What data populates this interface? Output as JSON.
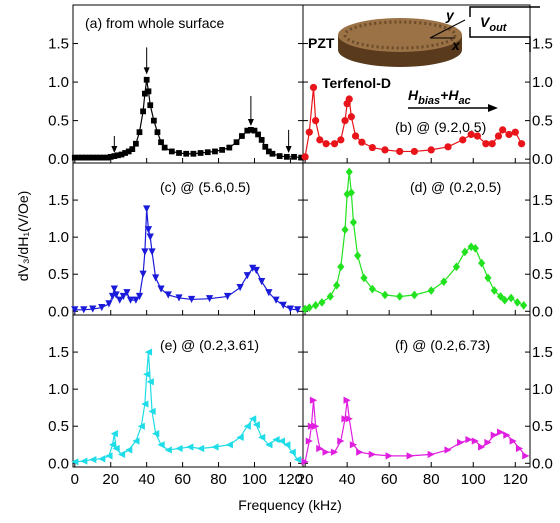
{
  "xlabel": "Frequency (kHz)",
  "ylabel": "dV₃/dH₁(V/Oe)",
  "inset": {
    "pzt": "PZT",
    "terfenol": "Terfenol-D",
    "axis_x": "x",
    "axis_y": "y",
    "vout": [
      "V",
      "out"
    ],
    "field": [
      "H",
      "bias",
      "+H",
      "ac"
    ]
  },
  "chart_data": [
    {
      "type": "line",
      "label": "(a) from whole surface",
      "color": "#000000",
      "marker": "square",
      "xlim": [
        -1,
        127
      ],
      "ylim": [
        -0.05,
        2.0
      ],
      "xticks": [
        0,
        20,
        40,
        60,
        80,
        100,
        120
      ],
      "yticks": [
        {
          "value": 0,
          "label": "0.0"
        },
        0.5,
        {
          "value": 1,
          "label": "1.0"
        },
        1.5
      ],
      "x": [
        0,
        2,
        4,
        6,
        8,
        10,
        12,
        14,
        16,
        18,
        20,
        22,
        24,
        26,
        28,
        30,
        32,
        34,
        36,
        38,
        39,
        40,
        41,
        42,
        44,
        46,
        48,
        50,
        54,
        58,
        62,
        66,
        70,
        74,
        78,
        82,
        86,
        90,
        93,
        96,
        98,
        100,
        102,
        104,
        106,
        108,
        110,
        114,
        118,
        122,
        126
      ],
      "values": [
        0.02,
        0.02,
        0.02,
        0.02,
        0.02,
        0.02,
        0.02,
        0.02,
        0.02,
        0.02,
        0.03,
        0.04,
        0.05,
        0.06,
        0.08,
        0.1,
        0.13,
        0.2,
        0.35,
        0.62,
        0.85,
        1.03,
        0.88,
        0.7,
        0.5,
        0.35,
        0.22,
        0.15,
        0.1,
        0.08,
        0.07,
        0.07,
        0.08,
        0.09,
        0.1,
        0.12,
        0.15,
        0.22,
        0.3,
        0.37,
        0.38,
        0.37,
        0.32,
        0.25,
        0.16,
        0.1,
        0.07,
        0.04,
        0.03,
        0.03,
        0.02
      ],
      "arrows": [
        {
          "x": 22,
          "y_from": 0.3,
          "y_to": 0.08
        },
        {
          "x": 40,
          "y_from": 1.45,
          "y_to": 1.1
        },
        {
          "x": 98,
          "y_from": 0.82,
          "y_to": 0.43
        },
        {
          "x": 119,
          "y_from": 0.38,
          "y_to": 0.08
        }
      ]
    },
    {
      "type": "line",
      "label": "(b) @ (9.2,0.5)",
      "color": "#e8141a",
      "marker": "circle",
      "xlim": [
        19,
        127
      ],
      "ylim": [
        -0.05,
        2.0
      ],
      "xticks": [
        20,
        40,
        60,
        80,
        100,
        120
      ],
      "yticks": [
        {
          "value": 0,
          "label": "0.0"
        },
        0.5,
        {
          "value": 1,
          "label": "1.0"
        },
        1.5
      ],
      "x": [
        20,
        22,
        24,
        25,
        27,
        30,
        34,
        37,
        39,
        40,
        41,
        42,
        44,
        47,
        52,
        58,
        65,
        72,
        80,
        88,
        95,
        99,
        102,
        106,
        109,
        112,
        114,
        117,
        120,
        123
      ],
      "values": [
        0.03,
        0.35,
        0.93,
        0.5,
        0.25,
        0.2,
        0.2,
        0.25,
        0.5,
        0.72,
        0.78,
        0.55,
        0.3,
        0.22,
        0.15,
        0.12,
        0.1,
        0.1,
        0.12,
        0.16,
        0.25,
        0.32,
        0.3,
        0.2,
        0.2,
        0.3,
        0.38,
        0.32,
        0.35,
        0.2
      ]
    },
    {
      "type": "line",
      "label": "(c) @ (5.6,0.5)",
      "color": "#1a1adb",
      "marker": "triangle-down",
      "xlim": [
        -1,
        127
      ],
      "ylim": [
        -0.05,
        2.0
      ],
      "xticks": [
        0,
        20,
        40,
        60,
        80,
        100,
        120
      ],
      "yticks": [
        {
          "value": 0,
          "label": "0.0"
        },
        0.5,
        {
          "value": 1,
          "label": "1.0"
        },
        1.5
      ],
      "x": [
        0,
        5,
        10,
        15,
        19,
        21,
        22,
        23,
        25,
        27,
        29,
        31,
        34,
        36,
        38,
        39,
        40,
        41,
        42,
        43,
        45,
        48,
        52,
        58,
        65,
        75,
        85,
        92,
        96,
        99,
        101,
        104,
        108,
        112,
        116,
        120,
        124
      ],
      "values": [
        0.02,
        0.02,
        0.03,
        0.05,
        0.1,
        0.2,
        0.3,
        0.22,
        0.15,
        0.2,
        0.25,
        0.15,
        0.15,
        0.2,
        0.5,
        0.8,
        1.38,
        1.1,
        1.0,
        0.8,
        0.45,
        0.3,
        0.22,
        0.18,
        0.16,
        0.17,
        0.2,
        0.32,
        0.48,
        0.58,
        0.55,
        0.4,
        0.25,
        0.15,
        0.08,
        0.03,
        0.02
      ]
    },
    {
      "type": "line",
      "label": "(d) @ (0.2,0.5)",
      "color": "#22e21f",
      "marker": "diamond",
      "xlim": [
        19,
        127
      ],
      "ylim": [
        -0.05,
        2.0
      ],
      "xticks": [
        20,
        40,
        60,
        80,
        100,
        120
      ],
      "yticks": [
        {
          "value": 0,
          "label": "0.0"
        },
        0.5,
        {
          "value": 1,
          "label": "1.0"
        },
        1.5
      ],
      "x": [
        20,
        22,
        25,
        28,
        32,
        35,
        37,
        39,
        40,
        41,
        42,
        43,
        45,
        48,
        52,
        58,
        65,
        72,
        80,
        86,
        92,
        96,
        99,
        101,
        104,
        107,
        110,
        113,
        115,
        118,
        121,
        124
      ],
      "values": [
        0.03,
        0.05,
        0.08,
        0.12,
        0.2,
        0.35,
        0.6,
        1.1,
        1.58,
        1.88,
        1.6,
        1.2,
        0.75,
        0.45,
        0.3,
        0.22,
        0.2,
        0.22,
        0.28,
        0.4,
        0.6,
        0.8,
        0.87,
        0.85,
        0.65,
        0.45,
        0.28,
        0.2,
        0.15,
        0.18,
        0.12,
        0.08
      ]
    },
    {
      "type": "line",
      "label": "(e) @ (0.2,3.61)",
      "color": "#1fdde8",
      "marker": "triangle-left",
      "xlim": [
        -1,
        127
      ],
      "ylim": [
        -0.05,
        2.0
      ],
      "xticks": [
        0,
        20,
        40,
        60,
        80,
        100,
        120
      ],
      "yticks": [
        {
          "value": 0,
          "label": "0.0"
        },
        0.5,
        {
          "value": 1,
          "label": "1.0"
        },
        1.5
      ],
      "x": [
        0,
        5,
        10,
        15,
        19,
        21,
        22,
        23,
        26,
        30,
        34,
        37,
        39,
        40,
        41,
        42,
        43,
        45,
        48,
        52,
        58,
        64,
        70,
        78,
        86,
        92,
        96,
        99,
        101,
        104,
        108,
        112,
        115,
        118,
        121,
        124
      ],
      "values": [
        0.02,
        0.03,
        0.05,
        0.06,
        0.1,
        0.25,
        0.4,
        0.2,
        0.12,
        0.18,
        0.3,
        0.5,
        0.8,
        1.2,
        1.5,
        1.1,
        0.7,
        0.4,
        0.25,
        0.18,
        0.2,
        0.22,
        0.2,
        0.22,
        0.25,
        0.35,
        0.5,
        0.6,
        0.52,
        0.35,
        0.25,
        0.32,
        0.3,
        0.25,
        0.15,
        0.05
      ]
    },
    {
      "type": "line",
      "label": "(f) @ (0.2,6.73)",
      "color": "#e01ee0",
      "marker": "triangle-right",
      "xlim": [
        19,
        127
      ],
      "ylim": [
        -0.05,
        2.0
      ],
      "xticks": [
        20,
        40,
        60,
        80,
        100,
        120
      ],
      "yticks": [
        {
          "value": 0,
          "label": "0.0"
        },
        0.5,
        {
          "value": 1,
          "label": "1.0"
        },
        1.5
      ],
      "x": [
        20,
        22,
        23,
        24,
        25,
        27,
        30,
        34,
        37,
        39,
        40,
        41,
        43,
        46,
        52,
        60,
        70,
        80,
        88,
        94,
        98,
        101,
        104,
        107,
        110,
        113,
        116,
        119,
        122,
        125
      ],
      "values": [
        0.02,
        0.3,
        0.5,
        0.85,
        0.5,
        0.2,
        0.15,
        0.15,
        0.3,
        0.6,
        0.85,
        0.6,
        0.25,
        0.15,
        0.12,
        0.1,
        0.1,
        0.12,
        0.18,
        0.28,
        0.32,
        0.3,
        0.22,
        0.28,
        0.38,
        0.42,
        0.38,
        0.3,
        0.2,
        0.1
      ]
    }
  ]
}
